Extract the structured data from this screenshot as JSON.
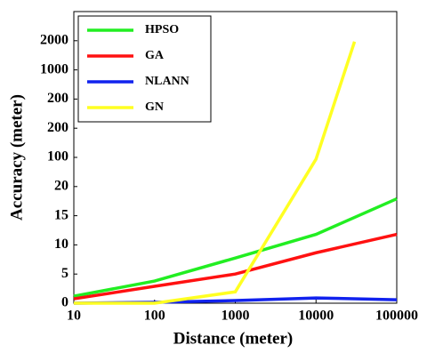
{
  "chart_data": {
    "type": "line",
    "xlabel": "Distance (meter)",
    "ylabel": "Accuracy (meter)",
    "xscale": "log",
    "xlim": [
      10,
      100000
    ],
    "xticks": [
      10,
      100,
      1000,
      10000,
      100000
    ],
    "ylim": [
      0,
      10
    ],
    "yticks": [
      {
        "value": 0,
        "label": "0"
      },
      {
        "value": 1,
        "label": "5"
      },
      {
        "value": 2,
        "label": "10"
      },
      {
        "value": 3,
        "label": "15"
      },
      {
        "value": 4,
        "label": "20"
      },
      {
        "value": 5,
        "label": "100"
      },
      {
        "value": 6,
        "label": "200"
      },
      {
        "value": 7,
        "label": "200"
      },
      {
        "value": 8,
        "label": "1000"
      },
      {
        "value": 9,
        "label": "2000"
      }
    ],
    "legend": "upper left",
    "series": [
      {
        "name": "HPSO",
        "color": "#22ee22",
        "x": [
          10,
          100,
          1000,
          10000,
          100000
        ],
        "values": [
          0.24,
          0.76,
          1.55,
          2.36,
          3.58
        ]
      },
      {
        "name": "GA",
        "color": "#ff1111",
        "x": [
          10,
          100,
          1000,
          10000,
          100000
        ],
        "values": [
          0.15,
          0.58,
          1.0,
          1.73,
          2.36
        ]
      },
      {
        "name": "NLANN",
        "color": "#1122ee",
        "x": [
          10,
          100,
          1000,
          10000,
          100000
        ],
        "values": [
          0,
          0.03,
          0.09,
          0.18,
          0.12
        ]
      },
      {
        "name": "GN",
        "color": "#ffff22",
        "x": [
          10,
          100,
          1000,
          10000,
          30000
        ],
        "values": [
          0,
          0,
          0.39,
          4.94,
          8.97
        ]
      }
    ]
  }
}
